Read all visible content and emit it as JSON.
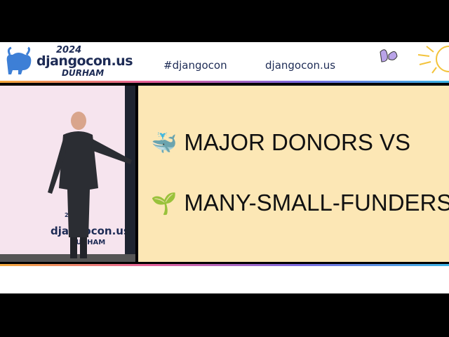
{
  "header": {
    "year": "2024",
    "brand": "djangocon.us",
    "city": "DURHAM",
    "hashtag": "#djangocon",
    "url": "djangocon.us"
  },
  "video": {
    "backdrop_year": "2024",
    "backdrop_brand": "djangocon.us",
    "backdrop_city": "DURHAM"
  },
  "slide": {
    "lines": [
      {
        "emoji": "🐳",
        "text": "MAJOR DONORS VS"
      },
      {
        "emoji": "🌱",
        "text": "MANY-SMALL-FUNDERS"
      }
    ]
  }
}
